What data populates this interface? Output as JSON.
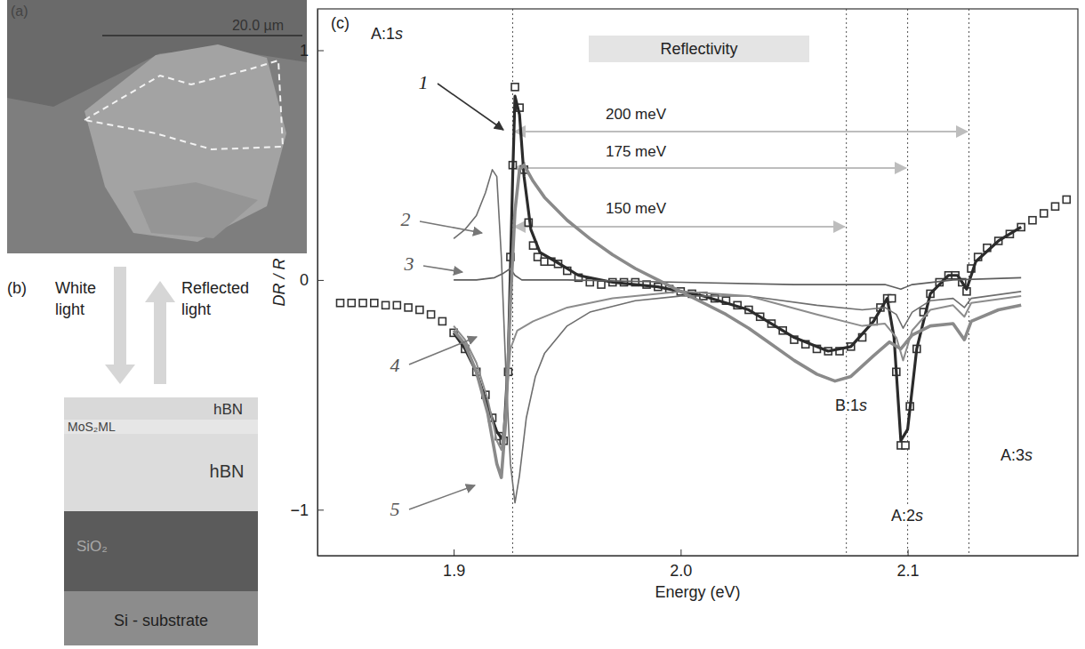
{
  "panel_a": {
    "label": "(a)",
    "scale_bar": "20.0 µm"
  },
  "panel_b": {
    "label": "(b)",
    "incident": "White light",
    "reflected": "Reflected light",
    "layers": [
      "hBN",
      "MoS₂ML",
      "hBN",
      "SiO₂",
      "Si - substrate"
    ]
  },
  "chart_data": {
    "type": "line",
    "title": "Reflectivity",
    "panel_label": "(c)",
    "x_label": "Energy (eV)",
    "y_label": "DR / R",
    "xlim": [
      1.84,
      2.175
    ],
    "ylim": [
      -1.2,
      1.18
    ],
    "xticks": [
      1.9,
      {
        "value": 2,
        "label": "2.0"
      },
      2.1
    ],
    "yticks": [
      1,
      0,
      {
        "value": -1,
        "label": "−1"
      }
    ],
    "grid": false,
    "series": [
      {
        "type": "scatter",
        "color": "#333333",
        "marker": "square",
        "x": [
          1.85,
          1.855,
          1.86,
          1.865,
          1.87,
          1.875,
          1.88,
          1.885,
          1.89,
          1.895,
          1.9,
          1.905,
          1.91,
          1.914,
          1.917,
          1.92,
          1.922,
          1.924,
          1.925,
          1.926,
          1.927,
          1.929,
          1.931,
          1.933,
          1.935,
          1.937,
          1.94,
          1.943,
          1.946,
          1.95,
          1.955,
          1.96,
          1.965,
          1.97,
          1.975,
          1.98,
          1.985,
          1.99,
          1.995,
          2.0,
          2.005,
          2.01,
          2.015,
          2.02,
          2.025,
          2.03,
          2.035,
          2.04,
          2.045,
          2.05,
          2.055,
          2.06,
          2.065,
          2.07,
          2.075,
          2.08,
          2.085,
          2.088,
          2.091,
          2.093,
          2.095,
          2.097,
          2.099,
          2.101,
          2.104,
          2.107,
          2.11,
          2.114,
          2.118,
          2.121,
          2.124,
          2.126,
          2.128,
          2.131,
          2.135,
          2.14,
          2.145,
          2.15,
          2.155,
          2.16,
          2.165,
          2.17
        ],
        "values": [
          -0.1,
          -0.1,
          -0.1,
          -0.1,
          -0.11,
          -0.11,
          -0.12,
          -0.13,
          -0.15,
          -0.18,
          -0.23,
          -0.3,
          -0.4,
          -0.5,
          -0.6,
          -0.68,
          -0.7,
          -0.4,
          0.1,
          0.5,
          0.84,
          0.75,
          0.48,
          0.25,
          0.15,
          0.1,
          0.08,
          0.08,
          0.07,
          0.04,
          0.01,
          -0.01,
          -0.02,
          -0.01,
          -0.01,
          -0.01,
          -0.02,
          -0.03,
          -0.04,
          -0.05,
          -0.06,
          -0.07,
          -0.08,
          -0.09,
          -0.11,
          -0.13,
          -0.16,
          -0.19,
          -0.22,
          -0.26,
          -0.28,
          -0.3,
          -0.31,
          -0.31,
          -0.29,
          -0.25,
          -0.18,
          -0.12,
          -0.08,
          -0.08,
          -0.4,
          -0.72,
          -0.72,
          -0.55,
          -0.3,
          -0.14,
          -0.06,
          -0.01,
          0.02,
          0.02,
          -0.01,
          -0.05,
          0.05,
          0.1,
          0.14,
          0.17,
          0.2,
          0.23,
          0.26,
          0.29,
          0.32,
          0.35
        ]
      },
      {
        "name": "1",
        "type": "line",
        "color": "#2b2b2b",
        "line_style": "solid",
        "x": [
          1.9,
          1.905,
          1.91,
          1.915,
          1.919,
          1.922,
          1.924,
          1.926,
          1.927,
          1.929,
          1.931,
          1.934,
          1.938,
          1.945,
          1.955,
          1.97,
          1.99,
          2.01,
          2.03,
          2.05,
          2.065,
          2.075,
          2.085,
          2.091,
          2.094,
          2.097,
          2.1,
          2.104,
          2.11,
          2.118,
          2.122,
          2.126,
          2.13,
          2.14,
          2.15
        ],
        "values": [
          -0.23,
          -0.3,
          -0.4,
          -0.55,
          -0.66,
          -0.7,
          -0.35,
          0.45,
          0.8,
          0.72,
          0.45,
          0.22,
          0.12,
          0.08,
          0.02,
          -0.01,
          -0.03,
          -0.07,
          -0.13,
          -0.25,
          -0.31,
          -0.29,
          -0.18,
          -0.08,
          -0.25,
          -0.7,
          -0.65,
          -0.3,
          -0.06,
          0.02,
          0.02,
          -0.04,
          0.08,
          0.17,
          0.23
        ]
      },
      {
        "name": "2",
        "type": "line",
        "color": "#6e6e6e",
        "line_style": "solid",
        "x": [
          1.9,
          1.905,
          1.91,
          1.914,
          1.917,
          1.919,
          1.921,
          1.923,
          1.925,
          1.927,
          1.929,
          1.932,
          1.936,
          1.94,
          1.95,
          1.96,
          1.98,
          2.0,
          2.03,
          2.06,
          2.08,
          2.09,
          2.095,
          2.098,
          2.102,
          2.11,
          2.12,
          2.125,
          2.128,
          2.15
        ],
        "values": [
          0.18,
          0.22,
          0.28,
          0.38,
          0.48,
          0.45,
          0.1,
          -0.4,
          -0.8,
          -0.97,
          -0.85,
          -0.6,
          -0.42,
          -0.32,
          -0.2,
          -0.14,
          -0.09,
          -0.07,
          -0.07,
          -0.11,
          -0.13,
          -0.12,
          -0.15,
          -0.21,
          -0.14,
          -0.09,
          -0.08,
          -0.12,
          -0.08,
          -0.05
        ]
      },
      {
        "name": "3",
        "type": "line",
        "color": "#5e5e5e",
        "line_style": "solid",
        "x": [
          1.9,
          1.91,
          1.918,
          1.922,
          1.925,
          1.927,
          1.93,
          1.95,
          2.0,
          2.05,
          2.09,
          2.097,
          2.102,
          2.12,
          2.15
        ],
        "values": [
          0.0,
          0.0,
          0.01,
          0.03,
          0.05,
          0.02,
          0.0,
          0.0,
          -0.01,
          -0.02,
          -0.02,
          -0.04,
          -0.02,
          0.0,
          0.01
        ]
      },
      {
        "name": "4",
        "type": "line",
        "color": "#8c8c8c",
        "line_style": "solid",
        "x": [
          1.9,
          1.905,
          1.91,
          1.915,
          1.919,
          1.921,
          1.923,
          1.925,
          1.928,
          1.935,
          1.95,
          1.97,
          2.0,
          2.03,
          2.06,
          2.08,
          2.09,
          2.095,
          2.098,
          2.102,
          2.11,
          2.12,
          2.125,
          2.128,
          2.15
        ],
        "values": [
          -0.2,
          -0.26,
          -0.36,
          -0.52,
          -0.7,
          -0.74,
          -0.55,
          -0.3,
          -0.22,
          -0.18,
          -0.12,
          -0.08,
          -0.05,
          -0.07,
          -0.15,
          -0.2,
          -0.19,
          -0.25,
          -0.35,
          -0.22,
          -0.13,
          -0.11,
          -0.16,
          -0.1,
          -0.07
        ]
      },
      {
        "name": "5",
        "type": "line",
        "color": "#8a8a8a",
        "line_style": "solid",
        "x": [
          1.9,
          1.905,
          1.91,
          1.915,
          1.919,
          1.921,
          1.923,
          1.925,
          1.927,
          1.929,
          1.931,
          1.935,
          1.94,
          1.95,
          1.96,
          1.97,
          1.98,
          1.99,
          2.0,
          2.01,
          2.02,
          2.03,
          2.04,
          2.05,
          2.06,
          2.068,
          2.075,
          2.085,
          2.092,
          2.097,
          2.102,
          2.11,
          2.12,
          2.125,
          2.128,
          2.14,
          2.15
        ],
        "values": [
          -0.22,
          -0.28,
          -0.4,
          -0.58,
          -0.8,
          -0.86,
          -0.6,
          -0.1,
          0.3,
          0.48,
          0.5,
          0.43,
          0.36,
          0.26,
          0.18,
          0.11,
          0.05,
          0.0,
          -0.05,
          -0.1,
          -0.15,
          -0.21,
          -0.28,
          -0.35,
          -0.41,
          -0.44,
          -0.42,
          -0.33,
          -0.27,
          -0.3,
          -0.24,
          -0.2,
          -0.19,
          -0.26,
          -0.18,
          -0.13,
          -0.11
        ]
      }
    ],
    "annotations": [
      {
        "text": "A:1s",
        "x": 1.926
      },
      {
        "text": "B:1s",
        "x": 2.073
      },
      {
        "text": "A:2s",
        "x": 2.1
      },
      {
        "text": "A:3s",
        "x": 2.127
      }
    ],
    "energy_gaps": [
      {
        "label": "200 meV",
        "from": 1.926,
        "to": 2.127
      },
      {
        "label": "175 meV",
        "from": 1.926,
        "to": 2.1
      },
      {
        "label": "150 meV",
        "from": 1.926,
        "to": 2.073
      }
    ]
  }
}
